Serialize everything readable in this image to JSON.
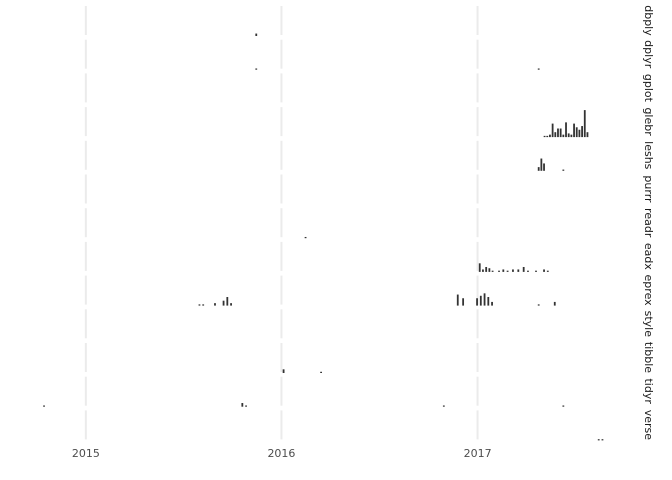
{
  "chart_data": {
    "type": "bar",
    "title": "",
    "xlabel": "",
    "ylabel": "",
    "grid": true,
    "legend": "none",
    "bar_color": "#333333",
    "grid_color": "#ebebeb",
    "x_axis": {
      "type": "date",
      "range": [
        "2014-09-30",
        "2017-09-20"
      ],
      "ticks": [
        {
          "date": "2015-01-01",
          "label": "2015"
        },
        {
          "date": "2016-01-01",
          "label": "2016"
        },
        {
          "date": "2017-01-01",
          "label": "2017"
        }
      ]
    },
    "facet_labels": [
      "dbply",
      "dplyr",
      "gplot",
      "glebr",
      "leshs",
      "purrr",
      "readr",
      "eadx",
      "eprex",
      "style",
      "tibble",
      "tidyr",
      "verse"
    ],
    "facets": [
      {
        "label": "dbply",
        "bars": [
          [
            "2015-11-15",
            2
          ]
        ]
      },
      {
        "label": "dplyr",
        "bars": [
          [
            "2015-11-15",
            1
          ],
          [
            "2017-04-25",
            1
          ]
        ]
      },
      {
        "label": "gplot",
        "bars": []
      },
      {
        "label": "glebr",
        "bars": [
          [
            "2017-05-06",
            1
          ],
          [
            "2017-05-11",
            1
          ],
          [
            "2017-05-16",
            2
          ],
          [
            "2017-05-21",
            11
          ],
          [
            "2017-05-26",
            4
          ],
          [
            "2017-05-31",
            7
          ],
          [
            "2017-06-05",
            7
          ],
          [
            "2017-06-10",
            2
          ],
          [
            "2017-06-15",
            12
          ],
          [
            "2017-06-20",
            3
          ],
          [
            "2017-06-25",
            2
          ],
          [
            "2017-06-30",
            11
          ],
          [
            "2017-07-05",
            8
          ],
          [
            "2017-07-10",
            6
          ],
          [
            "2017-07-15",
            9
          ],
          [
            "2017-07-20",
            22
          ],
          [
            "2017-07-25",
            4
          ]
        ]
      },
      {
        "label": "leshs",
        "bars": [
          [
            "2017-04-25",
            3
          ],
          [
            "2017-04-30",
            10
          ],
          [
            "2017-05-05",
            6
          ],
          [
            "2017-06-10",
            1
          ]
        ]
      },
      {
        "label": "purrr",
        "bars": []
      },
      {
        "label": "readr",
        "bars": [
          [
            "2016-02-15",
            1
          ]
        ]
      },
      {
        "label": "eadx",
        "bars": [
          [
            "2017-01-05",
            7
          ],
          [
            "2017-01-11",
            2
          ],
          [
            "2017-01-17",
            4
          ],
          [
            "2017-01-23",
            3
          ],
          [
            "2017-01-29",
            1
          ],
          [
            "2017-02-10",
            1
          ],
          [
            "2017-02-18",
            2
          ],
          [
            "2017-02-26",
            1
          ],
          [
            "2017-03-08",
            2
          ],
          [
            "2017-03-18",
            2
          ],
          [
            "2017-03-28",
            4
          ],
          [
            "2017-04-05",
            1
          ],
          [
            "2017-04-20",
            1
          ],
          [
            "2017-05-05",
            2
          ],
          [
            "2017-05-12",
            1
          ]
        ]
      },
      {
        "label": "eprex",
        "bars": [
          [
            "2015-08-01",
            1
          ],
          [
            "2015-08-08",
            1
          ],
          [
            "2015-08-30",
            2
          ],
          [
            "2015-09-15",
            4
          ],
          [
            "2015-09-22",
            7
          ],
          [
            "2015-09-29",
            2
          ],
          [
            "2016-11-25",
            9
          ],
          [
            "2016-12-05",
            6
          ],
          [
            "2016-12-31",
            6
          ],
          [
            "2017-01-07",
            8
          ],
          [
            "2017-01-14",
            10
          ],
          [
            "2017-01-21",
            7
          ],
          [
            "2017-01-28",
            3
          ],
          [
            "2017-04-25",
            1
          ],
          [
            "2017-05-25",
            3
          ]
        ]
      },
      {
        "label": "style",
        "bars": []
      },
      {
        "label": "tibble",
        "bars": [
          [
            "2016-01-05",
            3
          ],
          [
            "2016-03-15",
            1
          ]
        ]
      },
      {
        "label": "tidyr",
        "bars": [
          [
            "2014-10-15",
            1
          ],
          [
            "2015-10-20",
            3
          ],
          [
            "2015-10-27",
            1
          ],
          [
            "2016-10-30",
            1
          ],
          [
            "2017-06-10",
            1
          ]
        ]
      },
      {
        "label": "verse",
        "bars": [
          [
            "2017-08-15",
            1
          ],
          [
            "2017-08-22",
            1
          ]
        ]
      }
    ]
  }
}
